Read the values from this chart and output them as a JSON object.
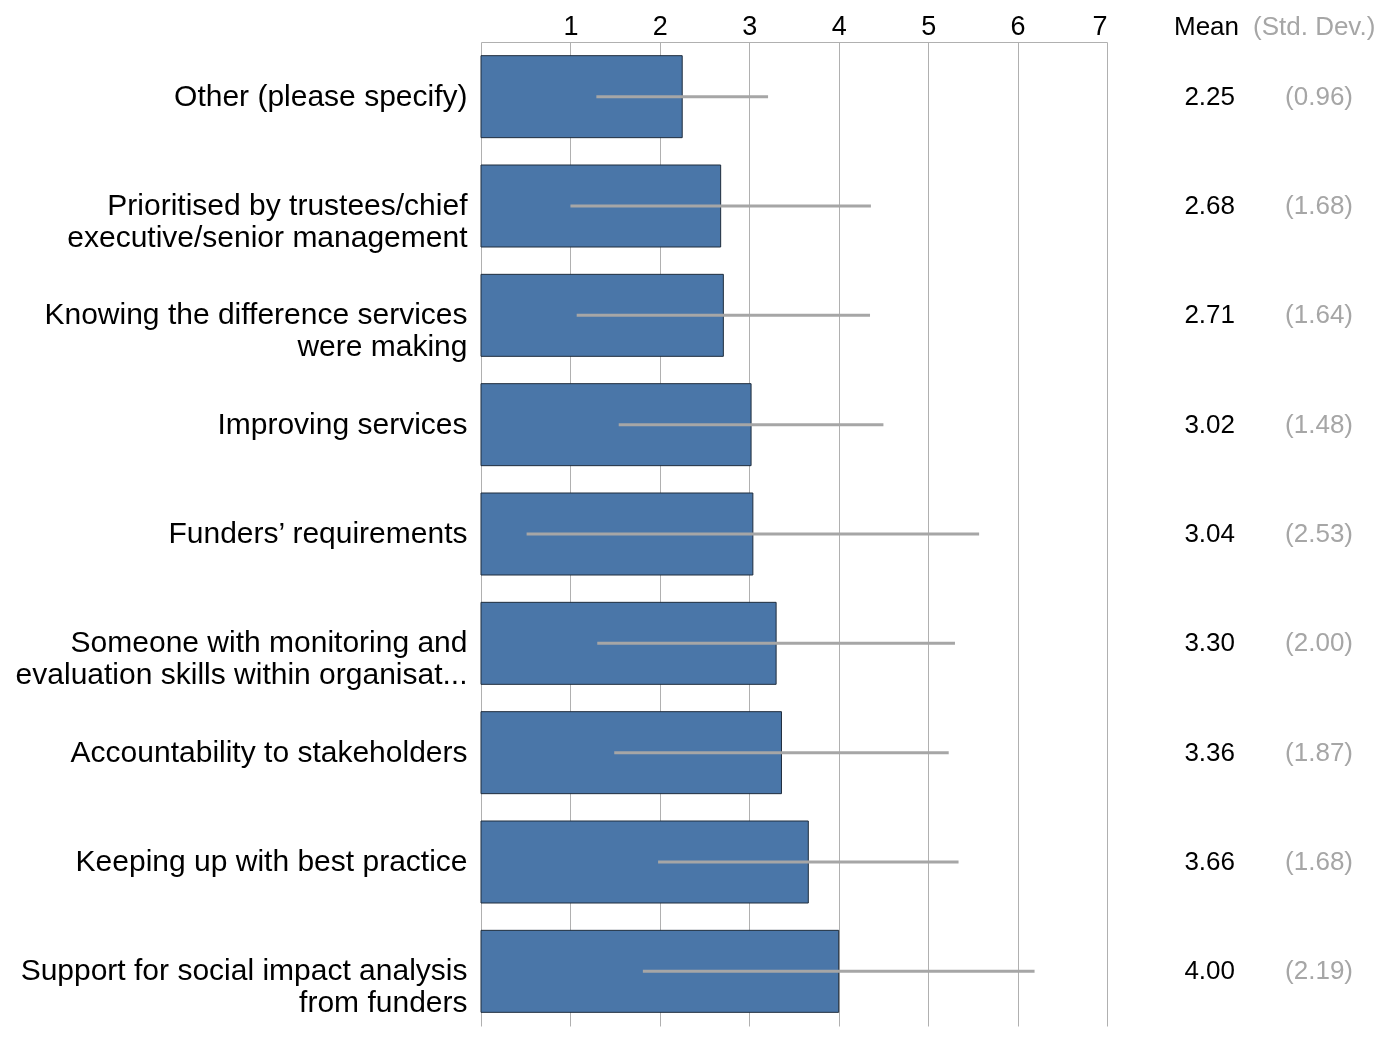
{
  "chart_data": {
    "type": "bar",
    "orientation": "horizontal",
    "categories": [
      "Other (please specify)",
      "Prioritised by trustees/chief executive/senior management",
      "Knowing the difference services were making",
      "Improving services",
      "Funders’ requirements",
      "Someone with monitoring and evaluation skills within organisat...",
      "Accountability to stakeholders",
      "Keeping up with best practice",
      "Support for social impact analysis from funders"
    ],
    "values": [
      2.25,
      2.68,
      2.71,
      3.02,
      3.04,
      3.3,
      3.36,
      3.66,
      4.0
    ],
    "value_labels": [
      "2.25",
      "2.68",
      "2.71",
      "3.02",
      "3.04",
      "3.30",
      "3.36",
      "3.66",
      "4.00"
    ],
    "errors": [
      0.96,
      1.68,
      1.64,
      1.48,
      2.53,
      2.0,
      1.87,
      1.68,
      2.19
    ],
    "color": "#4a76a8",
    "xlim": [
      0,
      7
    ],
    "xticks": [
      {
        "value": 0,
        "label": null
      },
      1,
      2,
      3,
      4,
      5,
      6,
      7
    ],
    "grid": "x",
    "annotations": [
      "Mean",
      "(Std. Dev.)",
      "(0.96)",
      "(1.68)",
      "(1.64)",
      "(1.48)",
      "(2.53)",
      "(2.00)",
      "(1.87)",
      "(1.68)",
      "(2.19)"
    ]
  }
}
